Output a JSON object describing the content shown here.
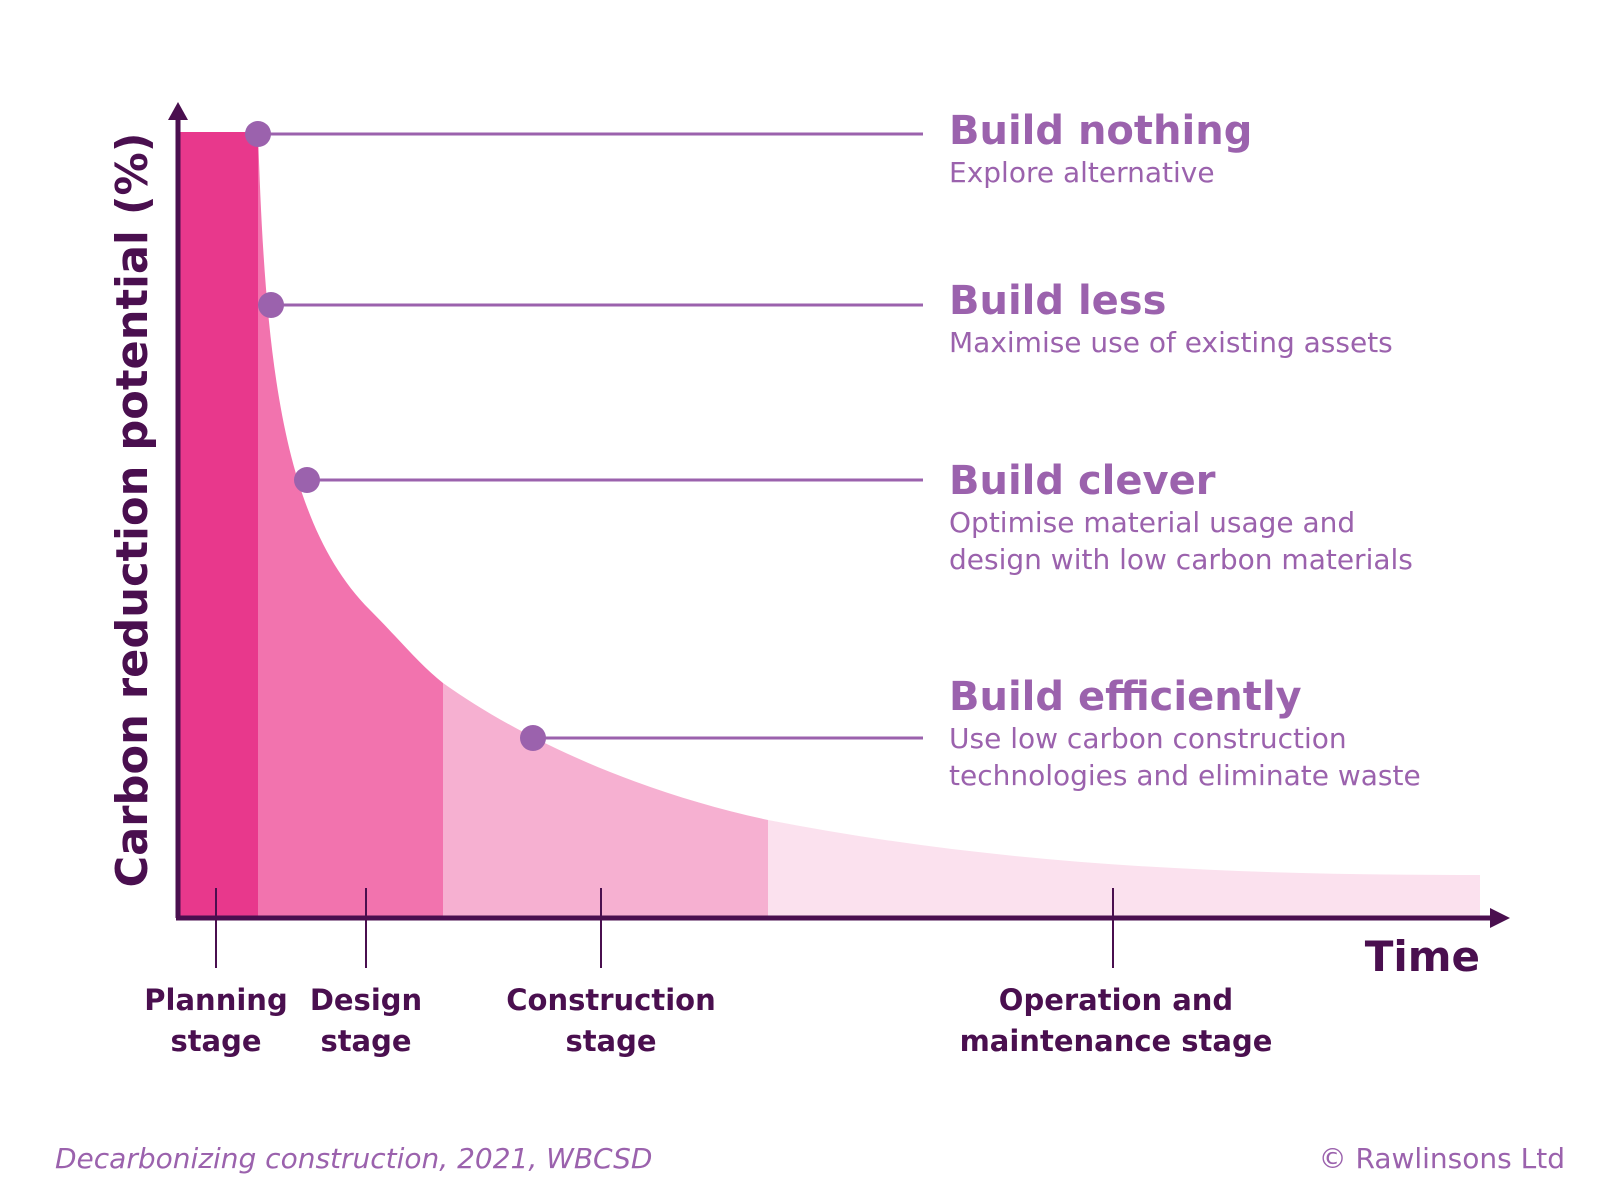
{
  "axes": {
    "y_label": "Carbon reduction potential (%)",
    "x_label": "Time"
  },
  "strategies": [
    {
      "title": "Build nothing",
      "lines": [
        "Explore alternative"
      ]
    },
    {
      "title": "Build less",
      "lines": [
        "Maximise use of existing assets"
      ]
    },
    {
      "title": "Build clever",
      "lines": [
        "Optimise material usage and",
        "design with low carbon materials"
      ]
    },
    {
      "title": "Build efficiently",
      "lines": [
        "Use low carbon construction",
        "technologies and eliminate waste"
      ]
    }
  ],
  "stages": [
    {
      "lines": [
        "Planning",
        "stage"
      ]
    },
    {
      "lines": [
        "Design",
        "stage"
      ]
    },
    {
      "lines": [
        "Construction",
        "stage"
      ]
    },
    {
      "lines": [
        "Operation and",
        "maintenance stage"
      ]
    }
  ],
  "footer": {
    "source": "Decarbonizing construction, 2021, WBCSD",
    "copyright": "© Rawlinsons Ltd"
  },
  "colors": {
    "axis": "#4a0f4f",
    "accent": "#9b62ad",
    "stage_planning": "#e8388c",
    "stage_design": "#f273ae",
    "stage_construction": "#f6b0d1",
    "stage_operation": "#fbe1ee"
  }
}
